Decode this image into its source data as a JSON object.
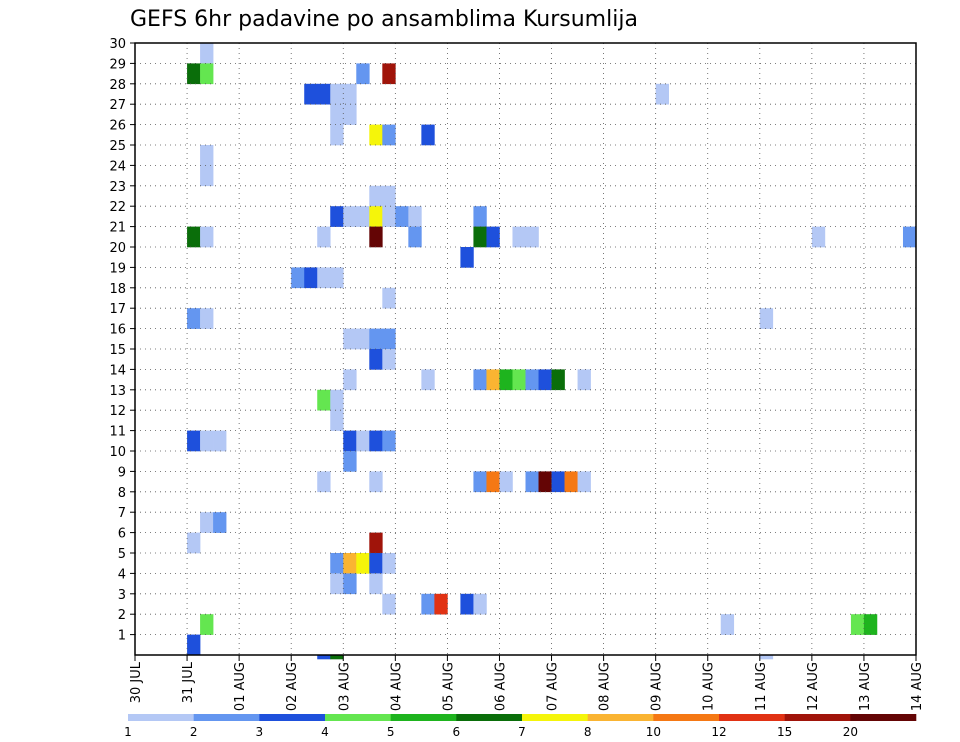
{
  "chart_data": {
    "type": "heatmap",
    "title": "GEFS 6hr padavine po ansamblima Kursumlija",
    "xlabel": "",
    "ylabel": "",
    "x_tick_labels": [
      "30 JUL",
      "31 JUL",
      "01 AUG",
      "02 AUG",
      "03 AUG",
      "04 AUG",
      "05 AUG",
      "06 AUG",
      "07 AUG",
      "08 AUG",
      "09 AUG",
      "10 AUG",
      "11 AUG",
      "12 AUG",
      "13 AUG",
      "14 AUG"
    ],
    "y_tick_labels": [
      "1",
      "2",
      "3",
      "4",
      "5",
      "6",
      "7",
      "8",
      "9",
      "10",
      "11",
      "12",
      "13",
      "14",
      "15",
      "16",
      "17",
      "18",
      "19",
      "20",
      "21",
      "22",
      "23",
      "24",
      "25",
      "26",
      "27",
      "28",
      "29",
      "30"
    ],
    "x_range_steps": [
      0,
      60
    ],
    "steps_per_day": 4,
    "y_range": [
      0,
      30
    ],
    "grid": true,
    "colorbar_labels": [
      "1",
      "2",
      "3",
      "4",
      "5",
      "6",
      "7",
      "8",
      "10",
      "12",
      "15",
      "20"
    ],
    "bins": [
      {
        "color": "#b4c8f5"
      },
      {
        "color": "#6496f0"
      },
      {
        "color": "#1e50dc"
      },
      {
        "color": "#64e650"
      },
      {
        "color": "#1eb41e"
      },
      {
        "color": "#0a6e0a"
      },
      {
        "color": "#f5f50a"
      },
      {
        "color": "#fab432"
      },
      {
        "color": "#f57814"
      },
      {
        "color": "#e13214"
      },
      {
        "color": "#a0140a"
      },
      {
        "color": "#640505"
      }
    ],
    "cells": [
      [
        5,
        29,
        1
      ],
      [
        4,
        28,
        6
      ],
      [
        5,
        28,
        4
      ],
      [
        17,
        28,
        2
      ],
      [
        19,
        28,
        11
      ],
      [
        13,
        27,
        3
      ],
      [
        14,
        27,
        3
      ],
      [
        15,
        27,
        1
      ],
      [
        16,
        27,
        1
      ],
      [
        40,
        27,
        1
      ],
      [
        15,
        26,
        1
      ],
      [
        16,
        26,
        1
      ],
      [
        15,
        25,
        1
      ],
      [
        18,
        25,
        7
      ],
      [
        19,
        25,
        2
      ],
      [
        22,
        25,
        3
      ],
      [
        5,
        24,
        1
      ],
      [
        5,
        23,
        1
      ],
      [
        18,
        22,
        1
      ],
      [
        19,
        22,
        1
      ],
      [
        15,
        21,
        3
      ],
      [
        16,
        21,
        1
      ],
      [
        17,
        21,
        1
      ],
      [
        18,
        21,
        7
      ],
      [
        19,
        21,
        1
      ],
      [
        20,
        21,
        2
      ],
      [
        21,
        21,
        1
      ],
      [
        26,
        21,
        2
      ],
      [
        4,
        20,
        6
      ],
      [
        5,
        20,
        1
      ],
      [
        14,
        20,
        1
      ],
      [
        18,
        20,
        12
      ],
      [
        21,
        20,
        2
      ],
      [
        26,
        20,
        6
      ],
      [
        27,
        20,
        3
      ],
      [
        29,
        20,
        1
      ],
      [
        30,
        20,
        1
      ],
      [
        52,
        20,
        1
      ],
      [
        59,
        20,
        2
      ],
      [
        25,
        19,
        3
      ],
      [
        12,
        18,
        2
      ],
      [
        13,
        18,
        3
      ],
      [
        14,
        18,
        1
      ],
      [
        15,
        18,
        1
      ],
      [
        19,
        17,
        1
      ],
      [
        4,
        16,
        2
      ],
      [
        5,
        16,
        1
      ],
      [
        48,
        16,
        1
      ],
      [
        16,
        15,
        1
      ],
      [
        17,
        15,
        1
      ],
      [
        18,
        15,
        2
      ],
      [
        19,
        15,
        2
      ],
      [
        18,
        14,
        3
      ],
      [
        19,
        14,
        1
      ],
      [
        16,
        13,
        1
      ],
      [
        22,
        13,
        1
      ],
      [
        26,
        13,
        2
      ],
      [
        27,
        13,
        8
      ],
      [
        28,
        13,
        5
      ],
      [
        29,
        13,
        4
      ],
      [
        30,
        13,
        2
      ],
      [
        31,
        13,
        3
      ],
      [
        32,
        13,
        6
      ],
      [
        34,
        13,
        1
      ],
      [
        14,
        12,
        4
      ],
      [
        15,
        12,
        1
      ],
      [
        15,
        11,
        1
      ],
      [
        4,
        10,
        3
      ],
      [
        5,
        10,
        1
      ],
      [
        6,
        10,
        1
      ],
      [
        16,
        10,
        3
      ],
      [
        17,
        10,
        1
      ],
      [
        18,
        10,
        3
      ],
      [
        19,
        10,
        2
      ],
      [
        16,
        9,
        2
      ],
      [
        14,
        8,
        1
      ],
      [
        18,
        8,
        1
      ],
      [
        26,
        8,
        2
      ],
      [
        27,
        8,
        9
      ],
      [
        28,
        8,
        1
      ],
      [
        30,
        8,
        2
      ],
      [
        31,
        8,
        12
      ],
      [
        32,
        8,
        3
      ],
      [
        33,
        8,
        9
      ],
      [
        34,
        8,
        1
      ],
      [
        5,
        6,
        1
      ],
      [
        6,
        6,
        2
      ],
      [
        4,
        5,
        1
      ],
      [
        18,
        5,
        11
      ],
      [
        15,
        4,
        2
      ],
      [
        16,
        4,
        8
      ],
      [
        17,
        4,
        7
      ],
      [
        18,
        4,
        3
      ],
      [
        19,
        4,
        1
      ],
      [
        15,
        3,
        1
      ],
      [
        16,
        3,
        2
      ],
      [
        18,
        3,
        1
      ],
      [
        19,
        2,
        1
      ],
      [
        22,
        2,
        2
      ],
      [
        23,
        2,
        10
      ],
      [
        25,
        2,
        3
      ],
      [
        26,
        2,
        1
      ],
      [
        5,
        1,
        4
      ],
      [
        45,
        1,
        1
      ],
      [
        55,
        1,
        4
      ],
      [
        56,
        1,
        5
      ],
      [
        4,
        0,
        3
      ],
      [
        14,
        -1,
        3
      ],
      [
        15,
        -1,
        6
      ],
      [
        48,
        -1,
        1
      ]
    ]
  }
}
